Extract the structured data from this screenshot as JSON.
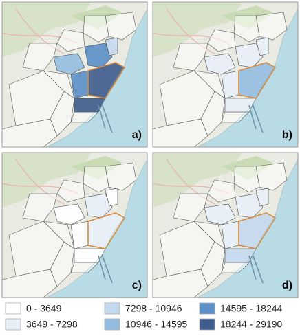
{
  "panels": [
    {
      "label": "a)"
    },
    {
      "label": "b)"
    },
    {
      "label": "c)"
    },
    {
      "label": "d)"
    }
  ],
  "legend": [
    {
      "label": "0 - 3649",
      "color": "#ffffff"
    },
    {
      "label": "3649 - 7298",
      "color": "#e8eff8"
    },
    {
      "label": "7298 - 10946",
      "color": "#c4d9ee"
    },
    {
      "label": "10946 - 14595",
      "color": "#93bde0"
    },
    {
      "label": "14595 - 18244",
      "color": "#5b8fc7"
    },
    {
      "label": "18244 - 29190",
      "color": "#3d5b8b"
    }
  ]
}
